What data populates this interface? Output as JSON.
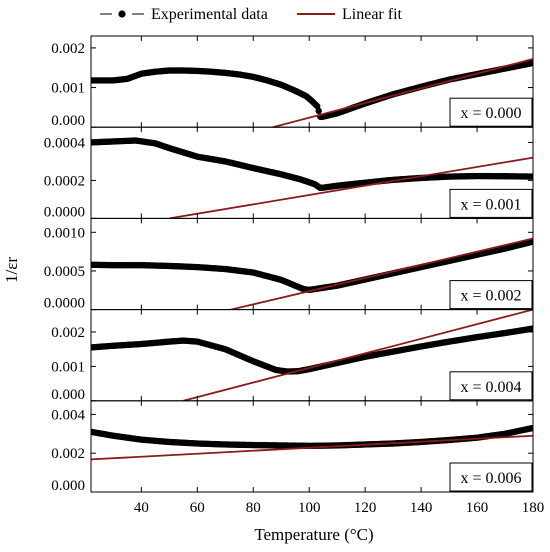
{
  "chart_data": {
    "type": "scatter",
    "layout": "stacked-panels",
    "xlabel": "Temperature (°C)",
    "ylabel": "1/εr",
    "xlim": [
      22,
      180
    ],
    "xticks": [
      40,
      60,
      80,
      100,
      120,
      140,
      160,
      180
    ],
    "grid": false,
    "legend": {
      "placement": "top",
      "entries": [
        {
          "label": "Experimental data",
          "style": "line-with-dot-marker",
          "color": "#000000"
        },
        {
          "label": "Linear fit",
          "style": "line",
          "color": "#8b1a1a"
        }
      ]
    },
    "panels": [
      {
        "label": "x = 0.000",
        "ylim": [
          0,
          0.0023
        ],
        "yticks": [
          0.0,
          0.001,
          0.002
        ],
        "ytick_labels": [
          "0.000",
          "0.001",
          "0.002"
        ],
        "experimental": [
          [
            22,
            0.00118
          ],
          [
            30,
            0.00118
          ],
          [
            35,
            0.00122
          ],
          [
            40,
            0.00135
          ],
          [
            45,
            0.0014
          ],
          [
            50,
            0.00143
          ],
          [
            55,
            0.00143
          ],
          [
            60,
            0.00142
          ],
          [
            65,
            0.0014
          ],
          [
            70,
            0.00137
          ],
          [
            75,
            0.00133
          ],
          [
            80,
            0.00127
          ],
          [
            85,
            0.00118
          ],
          [
            90,
            0.00107
          ],
          [
            95,
            0.00092
          ],
          [
            99,
            0.00078
          ],
          [
            101,
            0.00066
          ],
          [
            103,
            0.00052
          ],
          [
            104,
            0.00025
          ],
          [
            110,
            0.00035
          ],
          [
            120,
            0.0006
          ],
          [
            130,
            0.00083
          ],
          [
            140,
            0.00102
          ],
          [
            150,
            0.0012
          ],
          [
            160,
            0.00134
          ],
          [
            170,
            0.00148
          ],
          [
            180,
            0.00162
          ]
        ],
        "fit": [
          [
            87,
            0
          ],
          [
            180,
            0.00172
          ]
        ]
      },
      {
        "label": "x = 0.001",
        "ylim": [
          0,
          0.00048
        ],
        "yticks": [
          0.0,
          0.0002,
          0.0004
        ],
        "ytick_labels": [
          "0.0000",
          "0.0002",
          "0.0004"
        ],
        "experimental": [
          [
            22,
            0.0004
          ],
          [
            30,
            0.000405
          ],
          [
            38,
            0.00041
          ],
          [
            45,
            0.000395
          ],
          [
            50,
            0.00037
          ],
          [
            60,
            0.000325
          ],
          [
            70,
            0.0003
          ],
          [
            80,
            0.000265
          ],
          [
            90,
            0.000232
          ],
          [
            97,
            0.000205
          ],
          [
            102,
            0.00018
          ],
          [
            104,
            0.00016
          ],
          [
            110,
            0.000172
          ],
          [
            120,
            0.000188
          ],
          [
            130,
            0.000203
          ],
          [
            140,
            0.000213
          ],
          [
            150,
            0.00022
          ],
          [
            160,
            0.000223
          ],
          [
            170,
            0.000222
          ],
          [
            180,
            0.00022
          ]
        ],
        "fit": [
          [
            50,
            0
          ],
          [
            180,
            0.00032
          ]
        ]
      },
      {
        "label": "x = 0.002",
        "ylim": [
          0,
          0.00118
        ],
        "yticks": [
          0.0,
          0.0005,
          0.001
        ],
        "ytick_labels": [
          "0.0000",
          "0.0005",
          "0.0010"
        ],
        "experimental": [
          [
            22,
            0.00058
          ],
          [
            30,
            0.000575
          ],
          [
            40,
            0.000575
          ],
          [
            50,
            0.000565
          ],
          [
            60,
            0.00055
          ],
          [
            70,
            0.000525
          ],
          [
            80,
            0.00048
          ],
          [
            90,
            0.000385
          ],
          [
            95,
            0.00031
          ],
          [
            98,
            0.000265
          ],
          [
            100,
            0.000255
          ],
          [
            110,
            0.00031
          ],
          [
            120,
            0.00039
          ],
          [
            130,
            0.00047
          ],
          [
            140,
            0.00055
          ],
          [
            150,
            0.00063
          ],
          [
            160,
            0.00071
          ],
          [
            170,
            0.00079
          ],
          [
            180,
            0.00088
          ]
        ],
        "fit": [
          [
            72,
            0
          ],
          [
            180,
            0.00092
          ]
        ]
      },
      {
        "label": "x = 0.004",
        "ylim": [
          0,
          0.00265
        ],
        "yticks": [
          0.0,
          0.001,
          0.002
        ],
        "ytick_labels": [
          "0.000",
          "0.001",
          "0.002"
        ],
        "experimental": [
          [
            22,
            0.00155
          ],
          [
            30,
            0.0016
          ],
          [
            40,
            0.00165
          ],
          [
            50,
            0.00172
          ],
          [
            55,
            0.00175
          ],
          [
            60,
            0.00172
          ],
          [
            70,
            0.0015
          ],
          [
            80,
            0.00115
          ],
          [
            88,
            0.0009
          ],
          [
            92,
            0.00085
          ],
          [
            96,
            0.00086
          ],
          [
            100,
            0.00092
          ],
          [
            110,
            0.0011
          ],
          [
            120,
            0.00128
          ],
          [
            130,
            0.00143
          ],
          [
            140,
            0.00158
          ],
          [
            150,
            0.00172
          ],
          [
            160,
            0.00185
          ],
          [
            170,
            0.00197
          ],
          [
            180,
            0.0021
          ]
        ],
        "fit": [
          [
            55,
            0
          ],
          [
            180,
            0.00265
          ]
        ]
      },
      {
        "label": "x = 0.006",
        "ylim": [
          0,
          0.0047
        ],
        "yticks": [
          0.0,
          0.002,
          0.004
        ],
        "ytick_labels": [
          "0.000",
          "0.002",
          "0.004"
        ],
        "experimental": [
          [
            22,
            0.0031
          ],
          [
            30,
            0.0029
          ],
          [
            40,
            0.0027
          ],
          [
            50,
            0.00258
          ],
          [
            60,
            0.0025
          ],
          [
            70,
            0.00245
          ],
          [
            80,
            0.00242
          ],
          [
            90,
            0.0024
          ],
          [
            100,
            0.00238
          ],
          [
            110,
            0.0024
          ],
          [
            120,
            0.00245
          ],
          [
            130,
            0.0025
          ],
          [
            140,
            0.00258
          ],
          [
            150,
            0.00268
          ],
          [
            160,
            0.0028
          ],
          [
            170,
            0.003
          ],
          [
            180,
            0.0033
          ]
        ],
        "fit": [
          [
            22,
            0.00168
          ],
          [
            180,
            0.0029
          ]
        ]
      }
    ]
  }
}
